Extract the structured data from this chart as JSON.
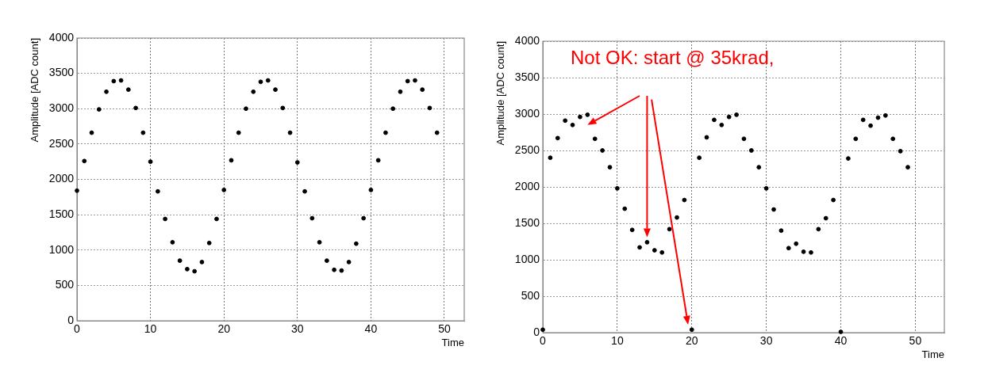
{
  "chart_data": [
    {
      "type": "scatter",
      "xlabel": "Time",
      "ylabel": "Amplitude [ADC count]",
      "color": "#000000",
      "marker": "circle",
      "grid": true,
      "x": [
        0,
        1,
        2,
        3,
        4,
        5,
        6,
        7,
        8,
        9,
        10,
        11,
        12,
        13,
        14,
        15,
        16,
        17,
        18,
        19,
        20,
        21,
        22,
        23,
        24,
        25,
        26,
        27,
        28,
        29,
        30,
        31,
        32,
        33,
        34,
        35,
        36,
        37,
        38,
        39,
        40,
        41,
        42,
        43,
        44,
        45,
        46,
        47,
        48,
        49
      ],
      "values": [
        1840,
        2260,
        2660,
        2990,
        3240,
        3390,
        3400,
        3270,
        3010,
        2660,
        2250,
        1830,
        1440,
        1110,
        850,
        730,
        700,
        830,
        1100,
        1440,
        1850,
        2270,
        2660,
        3000,
        3240,
        3380,
        3400,
        3270,
        3010,
        2660,
        2240,
        1830,
        1450,
        1110,
        850,
        720,
        710,
        830,
        1090,
        1450,
        1850,
        2270,
        2660,
        3000,
        3240,
        3390,
        3400,
        3270,
        3010,
        2660
      ],
      "xlim": [
        0,
        52.7
      ],
      "xticks": [
        0,
        10,
        20,
        30,
        40,
        50
      ],
      "ylim": [
        0,
        4000
      ],
      "yticks": [
        0,
        500,
        1000,
        1500,
        2000,
        2500,
        3000,
        3500,
        4000
      ]
    },
    {
      "type": "scatter",
      "xlabel": "Time",
      "ylabel": "Amplitude [ADC count]",
      "color": "#000000",
      "marker": "circle",
      "grid": true,
      "annotations": [
        "Not OK: start @ 35krad,"
      ],
      "x": [
        0,
        1,
        2,
        3,
        4,
        5,
        6,
        7,
        8,
        9,
        10,
        11,
        12,
        13,
        14,
        15,
        16,
        17,
        18,
        19,
        20,
        21,
        22,
        23,
        24,
        25,
        26,
        27,
        28,
        29,
        30,
        31,
        32,
        33,
        34,
        35,
        36,
        37,
        38,
        39,
        40,
        41,
        42,
        43,
        44,
        45,
        46,
        47,
        48,
        49
      ],
      "values": [
        40,
        2400,
        2670,
        2910,
        2850,
        2960,
        2990,
        2660,
        2500,
        2270,
        1980,
        1700,
        1410,
        1170,
        1240,
        1130,
        1100,
        1420,
        1580,
        1820,
        40,
        2400,
        2680,
        2920,
        2850,
        2960,
        2990,
        2660,
        2500,
        2270,
        1980,
        1690,
        1400,
        1160,
        1220,
        1110,
        1100,
        1420,
        1570,
        1820,
        10,
        2390,
        2660,
        2920,
        2840,
        2950,
        2980,
        2660,
        2490,
        2270
      ],
      "xlim": [
        0,
        53.9
      ],
      "xticks": [
        0,
        10,
        20,
        30,
        40,
        50
      ],
      "ylim": [
        0,
        4000
      ],
      "yticks": [
        0,
        500,
        1000,
        1500,
        2000,
        2500,
        3000,
        3500,
        4000
      ]
    }
  ]
}
